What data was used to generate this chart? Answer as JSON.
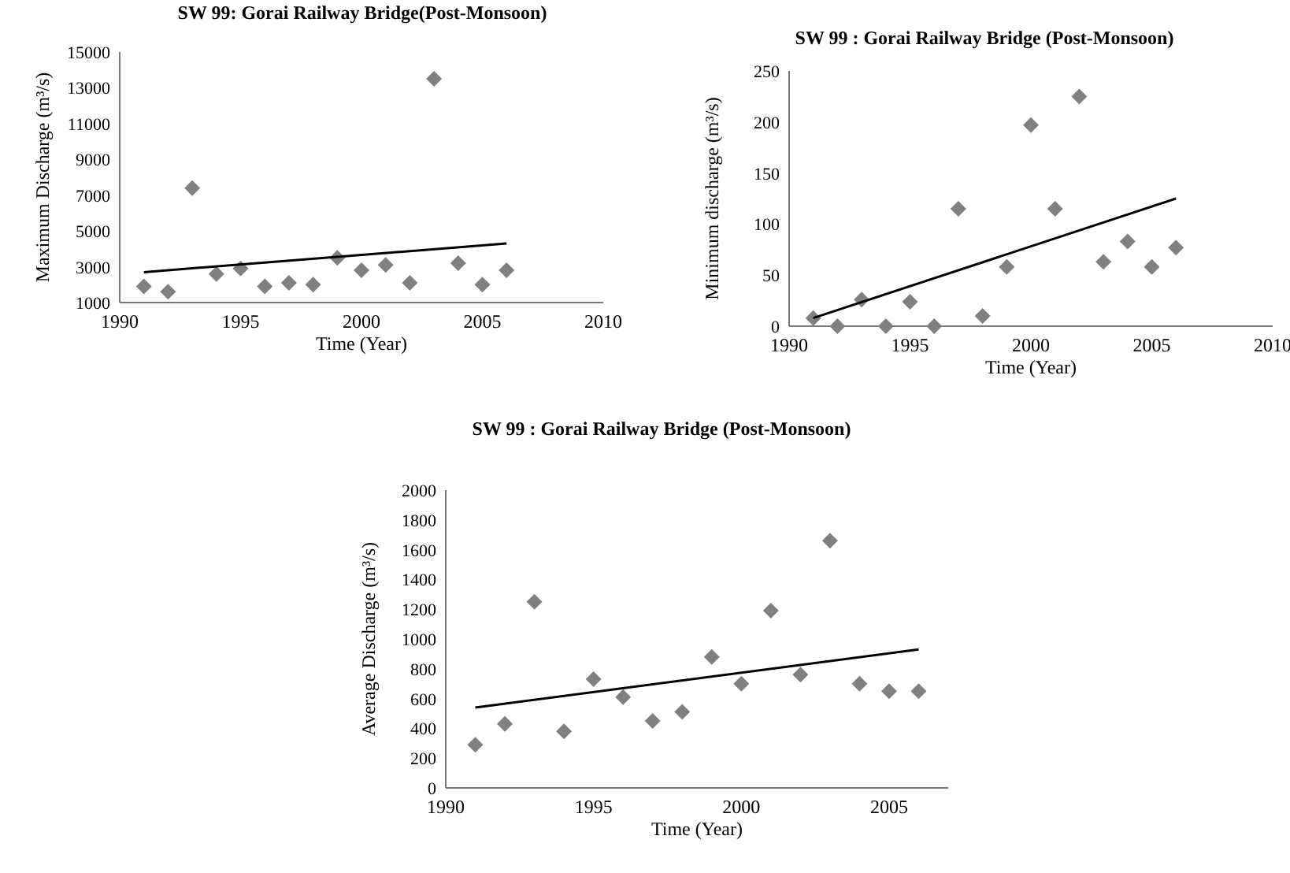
{
  "chart_data": [
    {
      "type": "scatter",
      "title": "SW 99: Gorai Railway Bridge(Post-Monsoon)",
      "xlabel": "Time (Year)",
      "ylabel": "Maximum Discharge (m³/s)",
      "xlim": [
        1990,
        2010
      ],
      "xticks": [
        1990,
        1995,
        2000,
        2005,
        2010
      ],
      "ylim": [
        1000,
        15000
      ],
      "yticks": [
        1000,
        3000,
        5000,
        7000,
        9000,
        11000,
        13000,
        15000
      ],
      "grid": false,
      "marker": "diamond",
      "series": [
        {
          "color": "#808080",
          "x": [
            1991,
            1992,
            1993,
            1994,
            1995,
            1996,
            1997,
            1998,
            1999,
            2000,
            2001,
            2002,
            2003,
            2004,
            2005,
            2006
          ],
          "values": [
            1900,
            1600,
            7400,
            2600,
            2900,
            1900,
            2100,
            2000,
            3500,
            2800,
            3100,
            2100,
            13500,
            3200,
            2000,
            2800
          ]
        },
        {
          "type": "line",
          "color": "#000000",
          "marker": "none",
          "line_style": "solid",
          "x": [
            1991,
            2006
          ],
          "values": [
            2700,
            4300
          ]
        }
      ]
    },
    {
      "type": "scatter",
      "title": "SW 99 : Gorai Railway Bridge (Post-Monsoon)",
      "xlabel": "Time (Year)",
      "ylabel": "Minimum discharge (m³/s)",
      "xlim": [
        1990,
        2010
      ],
      "xticks": [
        1990,
        1995,
        2000,
        2005,
        2010
      ],
      "ylim": [
        0,
        250
      ],
      "yticks": [
        0,
        50,
        100,
        150,
        200,
        250
      ],
      "grid": false,
      "marker": "diamond",
      "series": [
        {
          "color": "#808080",
          "x": [
            1991,
            1992,
            1993,
            1994,
            1995,
            1996,
            1997,
            1998,
            1999,
            2000,
            2001,
            2002,
            2003,
            2004,
            2005,
            2006
          ],
          "values": [
            8,
            0,
            26,
            0,
            24,
            0,
            115,
            10,
            58,
            197,
            115,
            225,
            63,
            83,
            58,
            77
          ]
        },
        {
          "type": "line",
          "color": "#000000",
          "marker": "none",
          "line_style": "solid",
          "x": [
            1991,
            2006
          ],
          "values": [
            8,
            125
          ]
        }
      ]
    },
    {
      "type": "scatter",
      "title": "SW 99 : Gorai Railway Bridge (Post-Monsoon)",
      "xlabel": "Time (Year)",
      "ylabel": "Average Discharge (m³/s)",
      "xlim": [
        1990,
        2007
      ],
      "xticks": [
        1990,
        1995,
        2000,
        2005
      ],
      "ylim": [
        0,
        2000
      ],
      "yticks": [
        0,
        200,
        400,
        600,
        800,
        1000,
        1200,
        1400,
        1600,
        1800,
        2000
      ],
      "grid": false,
      "marker": "diamond",
      "series": [
        {
          "color": "#808080",
          "x": [
            1991,
            1992,
            1993,
            1994,
            1995,
            1996,
            1997,
            1998,
            1999,
            2000,
            2001,
            2002,
            2003,
            2004,
            2005,
            2006
          ],
          "values": [
            290,
            430,
            1250,
            380,
            730,
            610,
            450,
            510,
            880,
            700,
            1190,
            760,
            1660,
            700,
            650,
            650
          ]
        },
        {
          "type": "line",
          "color": "#000000",
          "marker": "none",
          "line_style": "solid",
          "x": [
            1991,
            2006
          ],
          "values": [
            540,
            930
          ]
        }
      ]
    }
  ]
}
